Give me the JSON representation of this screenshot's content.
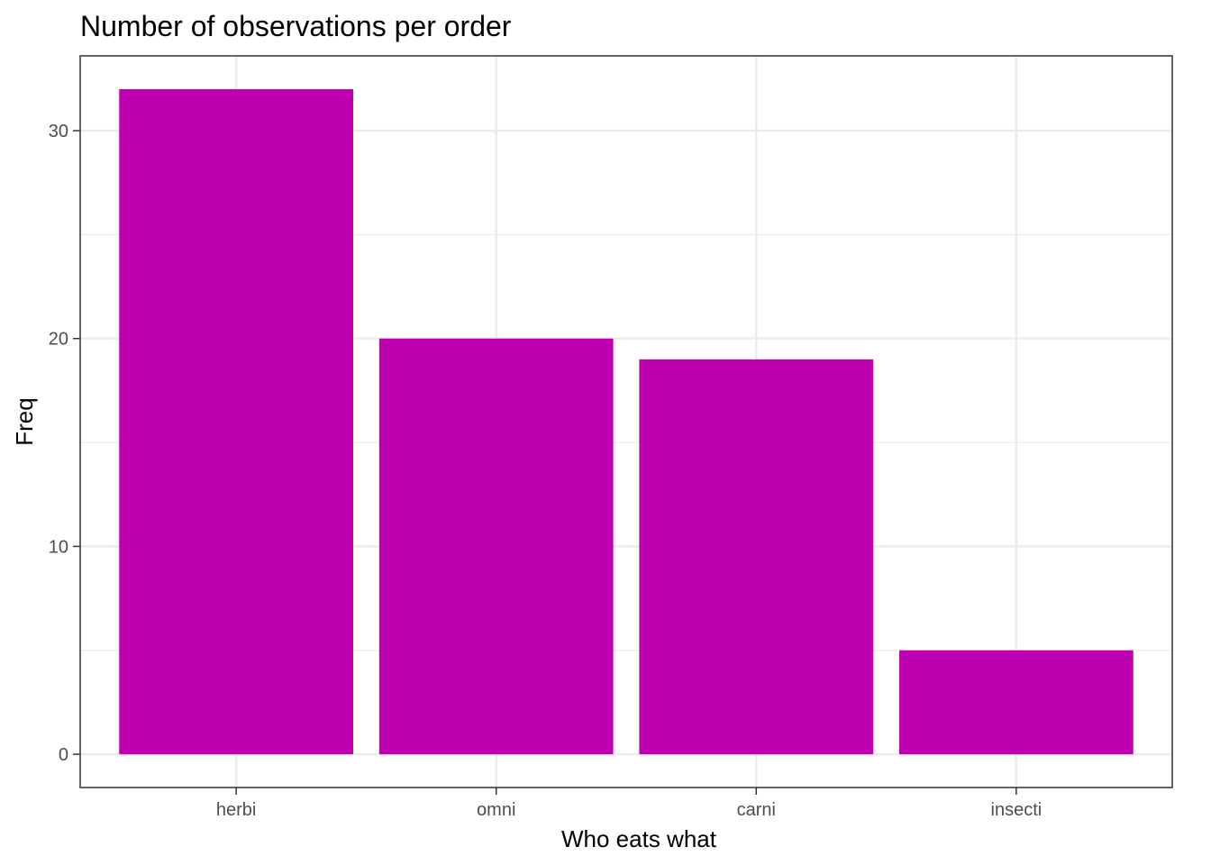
{
  "chart_data": {
    "type": "bar",
    "title": "Number of observations per order",
    "xlabel": "Who eats what",
    "ylabel": "Freq",
    "categories": [
      "herbi",
      "omni",
      "carni",
      "insecti"
    ],
    "values": [
      32,
      20,
      19,
      5
    ],
    "ylim": [
      -1.6,
      33.6
    ],
    "yticks": [
      0,
      10,
      20,
      30
    ],
    "grid": true,
    "bar_color": "#bf00b0",
    "grid_color": "#ebebeb",
    "panel_border_color": "#333333"
  }
}
